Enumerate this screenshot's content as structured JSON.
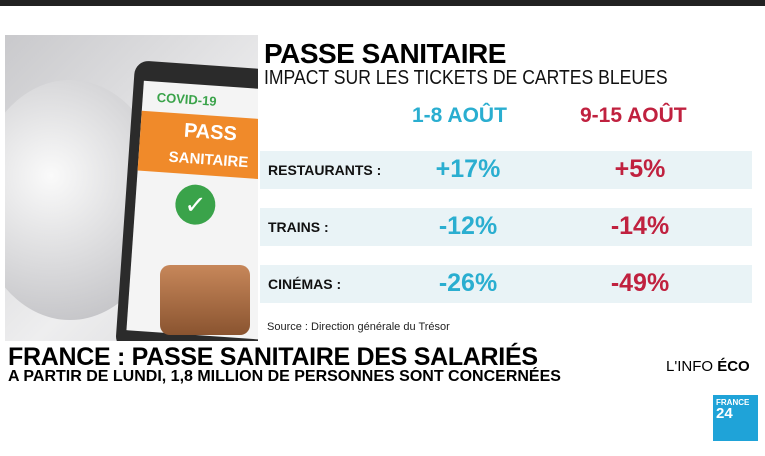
{
  "graphic": {
    "title": "PASSE SANITAIRE",
    "subtitle": "IMPACT SUR LES TICKETS DE CARTES BLEUES",
    "columns": [
      "1-8 AOÛT",
      "9-15 AOÛT"
    ],
    "rows": [
      {
        "label": "RESTAURANTS :",
        "v1": "+17%",
        "v2": "+5%"
      },
      {
        "label": "TRAINS :",
        "v1": "-12%",
        "v2": "-14%"
      },
      {
        "label": "CINÉMAS :",
        "v1": "-26%",
        "v2": "-49%"
      }
    ],
    "source": "Source : Direction générale du Trésor",
    "image": {
      "covid": "COVID-19",
      "pass": "PASS",
      "sanitaire": "SANITAIRE"
    }
  },
  "banner": {
    "headline": "FRANCE : PASSE SANITAIRE DES SALARIÉS",
    "subline": "A PARTIR DE LUNDI, 1,8 MILLION DE PERSONNES SONT CONCERNÉES",
    "program_prefix": "L'INFO ",
    "program_bold": "ÉCO"
  },
  "logo": {
    "line1": "FRANCE",
    "line2": "24"
  },
  "colors": {
    "cyan": "#2aaed0",
    "red": "#c0213f"
  }
}
